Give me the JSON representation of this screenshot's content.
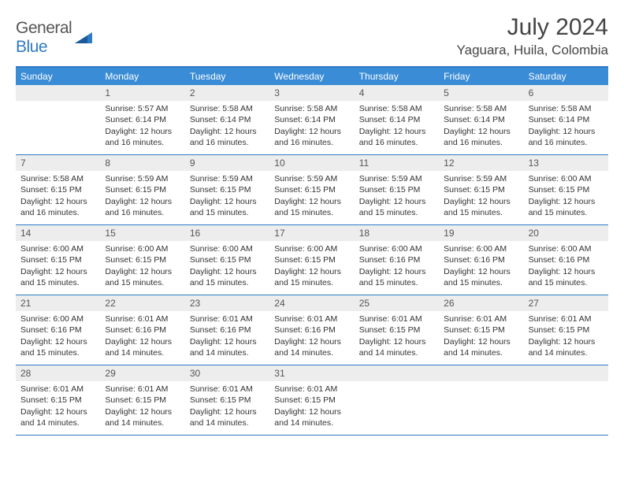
{
  "logo": {
    "text1": "General",
    "text2": "Blue"
  },
  "title": "July 2024",
  "location": "Yaguara, Huila, Colombia",
  "colors": {
    "header_bg": "#3a8cd6",
    "border": "#2f7ac4",
    "daynum_bg": "#ededed",
    "text": "#333333"
  },
  "weekdays": [
    "Sunday",
    "Monday",
    "Tuesday",
    "Wednesday",
    "Thursday",
    "Friday",
    "Saturday"
  ],
  "grid": {
    "start_day_of_week": 1,
    "days_in_month": 31
  },
  "days": {
    "1": {
      "sunrise": "5:57 AM",
      "sunset": "6:14 PM",
      "daylight": "12 hours and 16 minutes."
    },
    "2": {
      "sunrise": "5:58 AM",
      "sunset": "6:14 PM",
      "daylight": "12 hours and 16 minutes."
    },
    "3": {
      "sunrise": "5:58 AM",
      "sunset": "6:14 PM",
      "daylight": "12 hours and 16 minutes."
    },
    "4": {
      "sunrise": "5:58 AM",
      "sunset": "6:14 PM",
      "daylight": "12 hours and 16 minutes."
    },
    "5": {
      "sunrise": "5:58 AM",
      "sunset": "6:14 PM",
      "daylight": "12 hours and 16 minutes."
    },
    "6": {
      "sunrise": "5:58 AM",
      "sunset": "6:14 PM",
      "daylight": "12 hours and 16 minutes."
    },
    "7": {
      "sunrise": "5:58 AM",
      "sunset": "6:15 PM",
      "daylight": "12 hours and 16 minutes."
    },
    "8": {
      "sunrise": "5:59 AM",
      "sunset": "6:15 PM",
      "daylight": "12 hours and 16 minutes."
    },
    "9": {
      "sunrise": "5:59 AM",
      "sunset": "6:15 PM",
      "daylight": "12 hours and 15 minutes."
    },
    "10": {
      "sunrise": "5:59 AM",
      "sunset": "6:15 PM",
      "daylight": "12 hours and 15 minutes."
    },
    "11": {
      "sunrise": "5:59 AM",
      "sunset": "6:15 PM",
      "daylight": "12 hours and 15 minutes."
    },
    "12": {
      "sunrise": "5:59 AM",
      "sunset": "6:15 PM",
      "daylight": "12 hours and 15 minutes."
    },
    "13": {
      "sunrise": "6:00 AM",
      "sunset": "6:15 PM",
      "daylight": "12 hours and 15 minutes."
    },
    "14": {
      "sunrise": "6:00 AM",
      "sunset": "6:15 PM",
      "daylight": "12 hours and 15 minutes."
    },
    "15": {
      "sunrise": "6:00 AM",
      "sunset": "6:15 PM",
      "daylight": "12 hours and 15 minutes."
    },
    "16": {
      "sunrise": "6:00 AM",
      "sunset": "6:15 PM",
      "daylight": "12 hours and 15 minutes."
    },
    "17": {
      "sunrise": "6:00 AM",
      "sunset": "6:15 PM",
      "daylight": "12 hours and 15 minutes."
    },
    "18": {
      "sunrise": "6:00 AM",
      "sunset": "6:16 PM",
      "daylight": "12 hours and 15 minutes."
    },
    "19": {
      "sunrise": "6:00 AM",
      "sunset": "6:16 PM",
      "daylight": "12 hours and 15 minutes."
    },
    "20": {
      "sunrise": "6:00 AM",
      "sunset": "6:16 PM",
      "daylight": "12 hours and 15 minutes."
    },
    "21": {
      "sunrise": "6:00 AM",
      "sunset": "6:16 PM",
      "daylight": "12 hours and 15 minutes."
    },
    "22": {
      "sunrise": "6:01 AM",
      "sunset": "6:16 PM",
      "daylight": "12 hours and 14 minutes."
    },
    "23": {
      "sunrise": "6:01 AM",
      "sunset": "6:16 PM",
      "daylight": "12 hours and 14 minutes."
    },
    "24": {
      "sunrise": "6:01 AM",
      "sunset": "6:16 PM",
      "daylight": "12 hours and 14 minutes."
    },
    "25": {
      "sunrise": "6:01 AM",
      "sunset": "6:15 PM",
      "daylight": "12 hours and 14 minutes."
    },
    "26": {
      "sunrise": "6:01 AM",
      "sunset": "6:15 PM",
      "daylight": "12 hours and 14 minutes."
    },
    "27": {
      "sunrise": "6:01 AM",
      "sunset": "6:15 PM",
      "daylight": "12 hours and 14 minutes."
    },
    "28": {
      "sunrise": "6:01 AM",
      "sunset": "6:15 PM",
      "daylight": "12 hours and 14 minutes."
    },
    "29": {
      "sunrise": "6:01 AM",
      "sunset": "6:15 PM",
      "daylight": "12 hours and 14 minutes."
    },
    "30": {
      "sunrise": "6:01 AM",
      "sunset": "6:15 PM",
      "daylight": "12 hours and 14 minutes."
    },
    "31": {
      "sunrise": "6:01 AM",
      "sunset": "6:15 PM",
      "daylight": "12 hours and 14 minutes."
    }
  },
  "labels": {
    "sunrise": "Sunrise:",
    "sunset": "Sunset:",
    "daylight": "Daylight:"
  }
}
